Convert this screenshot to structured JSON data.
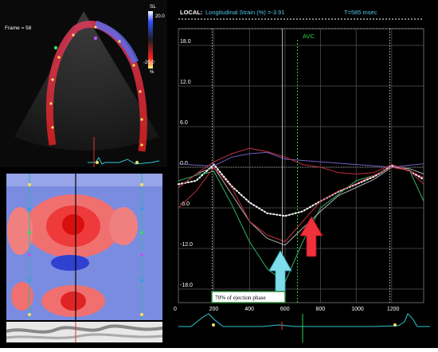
{
  "echo": {
    "frame_label": "Frame = 58",
    "scale_title": "SL",
    "scale_max": "20.0",
    "scale_min": "-20.0",
    "scale_unit": "%"
  },
  "header": {
    "mode_label": "LOCAL:",
    "measure_label": "Longitudinal Strain (%) =-3.91",
    "time_label": "T=585 msec"
  },
  "event_marker": {
    "label": "AVC"
  },
  "annotation": {
    "label": "70% of ejection phase"
  },
  "colors": {
    "background": "#000000",
    "grid": "#555555",
    "avc_line": "#2fd14a",
    "header_cyan": "#52c8e8",
    "arrow_blue": "#7fdcea",
    "arrow_red": "#f0303a"
  },
  "icons": {
    "up_arrow_blue": "up-arrow-icon",
    "up_arrow_red": "up-arrow-icon"
  },
  "chart_data": {
    "type": "line",
    "title": "",
    "xlabel": "",
    "ylabel": "",
    "xlim": [
      0,
      1380
    ],
    "ylim": [
      -20,
      20
    ],
    "x_ticks": [
      0,
      200,
      400,
      600,
      800,
      1000,
      1200
    ],
    "y_ticks": [
      18.0,
      12.0,
      6.0,
      0.0,
      -6.0,
      -12.0,
      -18.0
    ],
    "x": [
      0,
      100,
      200,
      300,
      400,
      500,
      600,
      700,
      800,
      900,
      1000,
      1100,
      1200,
      1300,
      1380
    ],
    "series": [
      {
        "color": "#ffffff",
        "style": "dotted",
        "values": [
          -2.5,
          -2.0,
          0.4,
          -2.8,
          -5.2,
          -6.8,
          -7.2,
          -6.5,
          -5.0,
          -3.6,
          -2.5,
          -1.4,
          0.2,
          -0.5,
          -1.8
        ]
      },
      {
        "color": "#30b060",
        "values": [
          -2.0,
          -1.2,
          -0.6,
          -5.5,
          -11.0,
          -15.0,
          -17.0,
          -11.0,
          -6.0,
          -4.0,
          -2.0,
          -1.2,
          0.0,
          -0.4,
          -5.0
        ]
      },
      {
        "color": "#b0b0b0",
        "values": [
          -3.0,
          -1.0,
          0.0,
          -4.0,
          -8.0,
          -10.5,
          -11.5,
          -9.0,
          -6.5,
          -4.2,
          -3.0,
          -1.8,
          0.0,
          -0.2,
          -1.0
        ]
      },
      {
        "color": "#7060c0",
        "values": [
          0.5,
          0.3,
          0.2,
          1.5,
          2.0,
          2.2,
          1.2,
          1.0,
          0.8,
          0.6,
          0.4,
          0.2,
          0.0,
          0.3,
          0.5
        ]
      },
      {
        "color": "#c03040",
        "values": [
          -3.0,
          -1.0,
          0.8,
          2.0,
          2.8,
          2.3,
          1.5,
          0.4,
          0.0,
          -0.8,
          -1.0,
          -0.8,
          0.4,
          -0.5,
          -1.5
        ]
      },
      {
        "color": "#c03040",
        "values": [
          -6.0,
          -3.5,
          0.0,
          -3.0,
          -8.0,
          -10.0,
          -11.0,
          -8.0,
          -5.0,
          -3.5,
          -2.4,
          -1.2,
          0.0,
          -0.5,
          -2.5
        ]
      }
    ]
  }
}
